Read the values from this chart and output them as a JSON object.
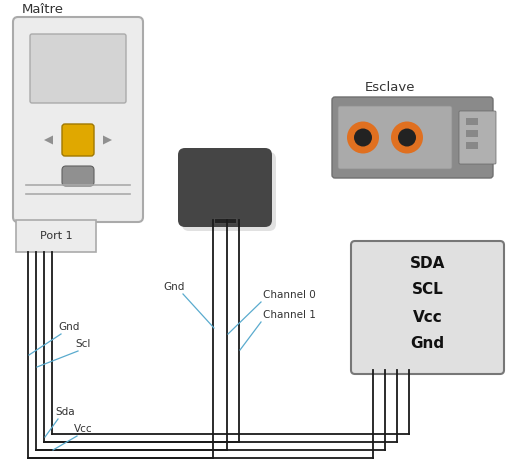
{
  "bg_color": "#ffffff",
  "maitre_label": "Maître",
  "esclave_label": "Esclave",
  "port1_label": "Port 1",
  "slave_pins": [
    "SDA",
    "SCL",
    "Vcc",
    "Gnd"
  ],
  "nxt_body_color": "#ececec",
  "nxt_border_color": "#aaaaaa",
  "nxt_screen_color": "#d4d4d4",
  "nxt_btn_yellow": "#e0a800",
  "nxt_btn_gray": "#909090",
  "nxt_btn_arrow": "#909090",
  "analyzer_color": "#454545",
  "analyzer_shadow": "#888888",
  "slave_box_color": "#e0e0e0",
  "slave_box_border": "#777777",
  "sensor_body": "#8a8a8a",
  "sensor_light": "#aaaaaa",
  "sensor_orange": "#e07020",
  "sensor_dark_ring": "#333333",
  "wire_color": "#1a1a1a",
  "label_color": "#333333",
  "annotation_line_color": "#5aabce"
}
